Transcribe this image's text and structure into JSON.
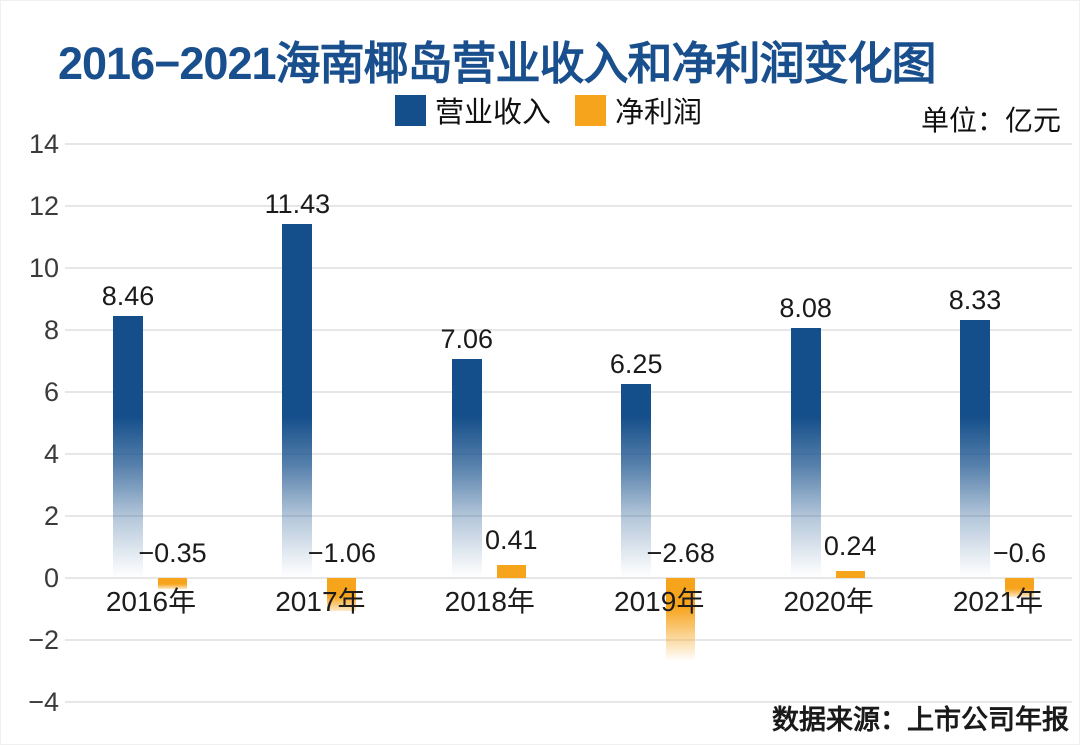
{
  "title": "2016−2021海南椰岛营业收入和净利润变化图",
  "unit_label": "单位：亿元",
  "source_label": "数据来源：上市公司年报",
  "legend": {
    "items": [
      {
        "label": "营业收入",
        "color": "#154f8b"
      },
      {
        "label": "净利润",
        "color": "#f7a41d"
      }
    ]
  },
  "colors": {
    "title_blue": "#1a4f8e",
    "revenue_bar": "#154f8b",
    "net_profit_bar": "#f7a41d",
    "gridline": "#e7e7e7",
    "text": "#1a1a1a"
  },
  "chart_data": {
    "type": "bar",
    "title": "2016−2021海南椰岛营业收入和净利润变化图",
    "unit": "亿元",
    "categories": [
      "2016年",
      "2017年",
      "2018年",
      "2019年",
      "2020年",
      "2021年"
    ],
    "series": [
      {
        "name": "营业收入",
        "color": "#154f8b",
        "values": [
          8.46,
          11.43,
          7.06,
          6.25,
          8.08,
          8.33
        ],
        "labels": [
          "8.46",
          "11.43",
          "7.06",
          "6.25",
          "8.08",
          "8.33"
        ]
      },
      {
        "name": "净利润",
        "color": "#f7a41d",
        "values": [
          -0.35,
          -1.06,
          0.41,
          -2.68,
          0.24,
          -0.6
        ],
        "labels": [
          "−0.35",
          "−1.06",
          "0.41",
          "−2.68",
          "0.24",
          "−0.6"
        ]
      }
    ],
    "ylim": [
      -4,
      14
    ],
    "yticks": [
      14,
      12,
      10,
      8,
      6,
      4,
      2,
      0,
      -2,
      -4
    ],
    "ytick_labels": [
      "14",
      "12",
      "10",
      "8",
      "6",
      "4",
      "2",
      "0",
      "−2",
      "−4"
    ],
    "grid": true,
    "legend_position": "top-center",
    "source": "数据来源：上市公司年报"
  }
}
